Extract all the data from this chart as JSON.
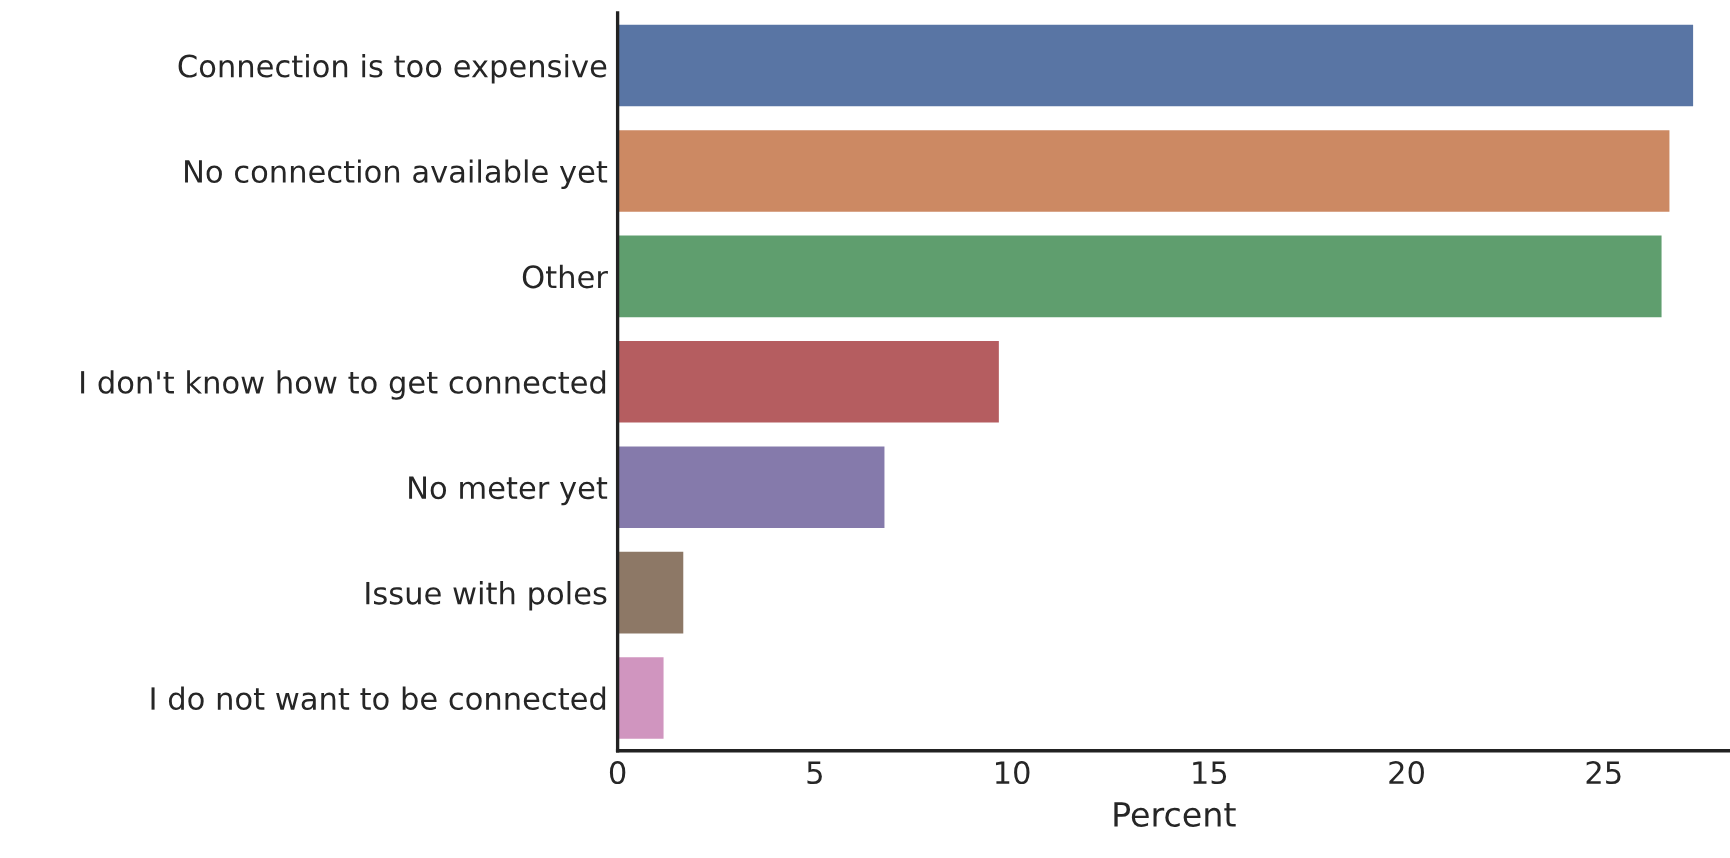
{
  "chart_data": {
    "type": "bar",
    "orientation": "horizontal",
    "xlabel": "Percent",
    "categories": [
      "Connection is too expensive",
      "No connection available yet",
      "Other",
      "I don't know how to get connected",
      "No meter yet",
      "Issue with poles",
      "I do not want to be connected"
    ],
    "values": [
      27.3,
      26.7,
      26.5,
      9.7,
      6.8,
      1.7,
      1.2
    ],
    "colors": [
      "#5975a4",
      "#cc8963",
      "#5f9e6e",
      "#b55d60",
      "#857aab",
      "#8d7866",
      "#d095bf"
    ],
    "xlim": [
      0,
      28.2
    ],
    "xticks": [
      0,
      5,
      10,
      15,
      20,
      25
    ],
    "grid": false
  }
}
